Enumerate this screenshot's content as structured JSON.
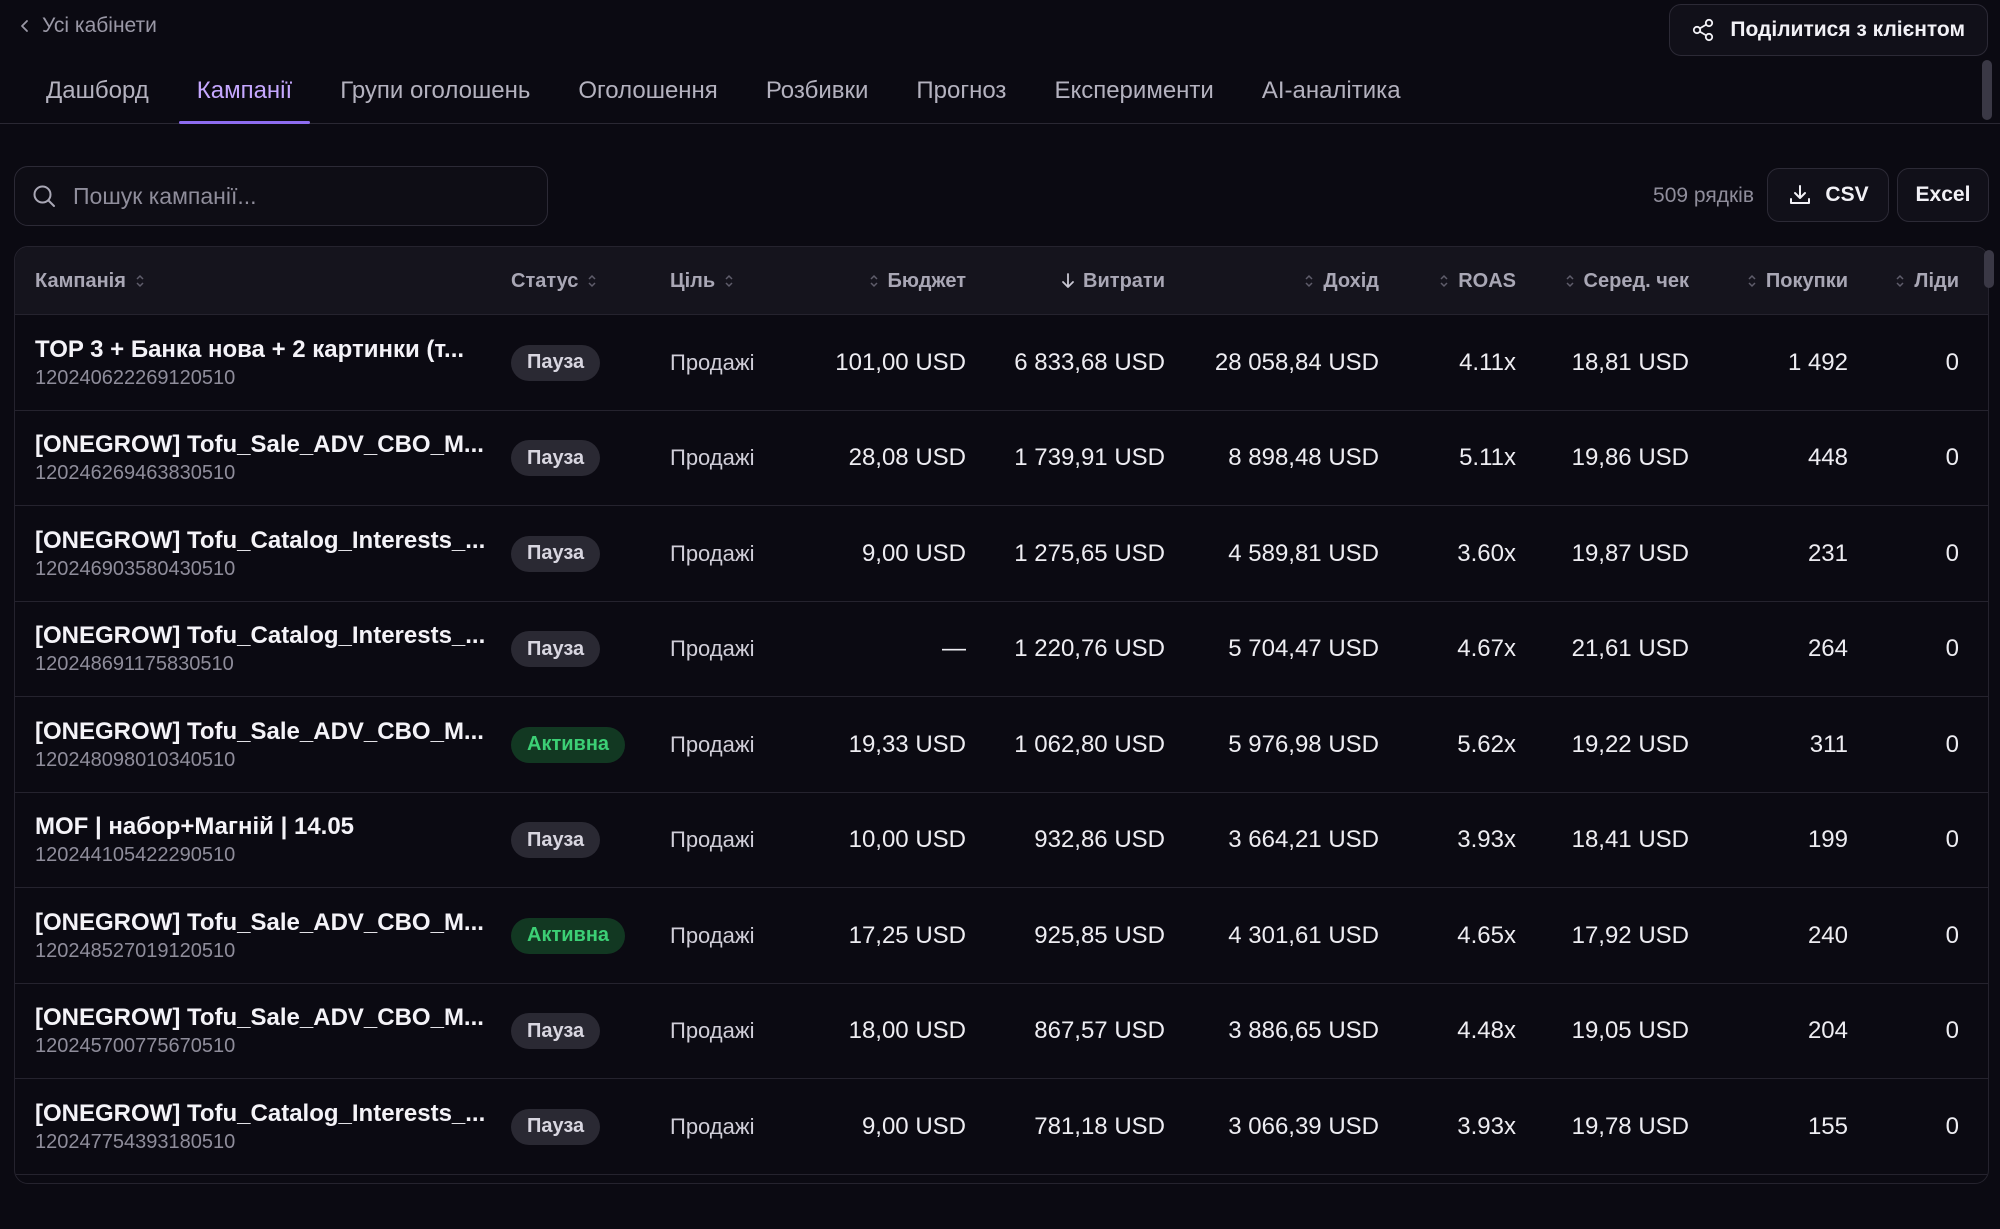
{
  "header": {
    "back_label": "Усі кабінети",
    "share_label": "Поділитися з клієнтом"
  },
  "tabs": [
    {
      "label": "Дашборд",
      "active": false
    },
    {
      "label": "Кампанії",
      "active": true
    },
    {
      "label": "Групи оголошень",
      "active": false
    },
    {
      "label": "Оголошення",
      "active": false
    },
    {
      "label": "Розбивки",
      "active": false
    },
    {
      "label": "Прогноз",
      "active": false
    },
    {
      "label": "Експерименти",
      "active": false
    },
    {
      "label": "AI-аналітика",
      "active": false
    }
  ],
  "toolbar": {
    "search_placeholder": "Пошук кампанії...",
    "row_count": "509 рядків",
    "csv_label": "CSV",
    "excel_label": "Excel"
  },
  "table": {
    "columns": [
      {
        "key": "campaign",
        "label": "Кампанія"
      },
      {
        "key": "status",
        "label": "Статус"
      },
      {
        "key": "goal",
        "label": "Ціль"
      },
      {
        "key": "budget",
        "label": "Бюджет"
      },
      {
        "key": "spend",
        "label": "Витрати",
        "sorted": "desc"
      },
      {
        "key": "revenue",
        "label": "Дохід"
      },
      {
        "key": "roas",
        "label": "ROAS"
      },
      {
        "key": "avg_check",
        "label": "Серед. чек"
      },
      {
        "key": "purchases",
        "label": "Покупки"
      },
      {
        "key": "leads",
        "label": "Ліди"
      }
    ],
    "rows": [
      {
        "name": "TOP 3 + Банка нова + 2 картинки (т...",
        "id": "120240622269120510",
        "status": "Пауза",
        "goal": "Продажі",
        "budget": "101,00 USD",
        "spend": "6 833,68 USD",
        "revenue": "28 058,84 USD",
        "roas": "4.11x",
        "avg_check": "18,81 USD",
        "purchases": "1 492",
        "leads": "0"
      },
      {
        "name": "[ONEGROW] Tofu_Sale_ADV_CBO_M...",
        "id": "120246269463830510",
        "status": "Пауза",
        "goal": "Продажі",
        "budget": "28,08 USD",
        "spend": "1 739,91 USD",
        "revenue": "8 898,48 USD",
        "roas": "5.11x",
        "avg_check": "19,86 USD",
        "purchases": "448",
        "leads": "0"
      },
      {
        "name": "[ONEGROW] Tofu_Catalog_Interests_...",
        "id": "120246903580430510",
        "status": "Пауза",
        "goal": "Продажі",
        "budget": "9,00 USD",
        "spend": "1 275,65 USD",
        "revenue": "4 589,81 USD",
        "roas": "3.60x",
        "avg_check": "19,87 USD",
        "purchases": "231",
        "leads": "0"
      },
      {
        "name": "[ONEGROW] Tofu_Catalog_Interests_...",
        "id": "120248691175830510",
        "status": "Пауза",
        "goal": "Продажі",
        "budget": "—",
        "spend": "1 220,76 USD",
        "revenue": "5 704,47 USD",
        "roas": "4.67x",
        "avg_check": "21,61 USD",
        "purchases": "264",
        "leads": "0"
      },
      {
        "name": "[ONEGROW] Tofu_Sale_ADV_CBO_M...",
        "id": "120248098010340510",
        "status": "Активна",
        "goal": "Продажі",
        "budget": "19,33 USD",
        "spend": "1 062,80 USD",
        "revenue": "5 976,98 USD",
        "roas": "5.62x",
        "avg_check": "19,22 USD",
        "purchases": "311",
        "leads": "0"
      },
      {
        "name": "MOF | набор+Магній | 14.05",
        "id": "120244105422290510",
        "status": "Пауза",
        "goal": "Продажі",
        "budget": "10,00 USD",
        "spend": "932,86 USD",
        "revenue": "3 664,21 USD",
        "roas": "3.93x",
        "avg_check": "18,41 USD",
        "purchases": "199",
        "leads": "0"
      },
      {
        "name": "[ONEGROW] Tofu_Sale_ADV_CBO_M...",
        "id": "120248527019120510",
        "status": "Активна",
        "goal": "Продажі",
        "budget": "17,25 USD",
        "spend": "925,85 USD",
        "revenue": "4 301,61 USD",
        "roas": "4.65x",
        "avg_check": "17,92 USD",
        "purchases": "240",
        "leads": "0"
      },
      {
        "name": "[ONEGROW] Tofu_Sale_ADV_CBO_M...",
        "id": "120245700775670510",
        "status": "Пауза",
        "goal": "Продажі",
        "budget": "18,00 USD",
        "spend": "867,57 USD",
        "revenue": "3 886,65 USD",
        "roas": "4.48x",
        "avg_check": "19,05 USD",
        "purchases": "204",
        "leads": "0"
      },
      {
        "name": "[ONEGROW] Tofu_Catalog_Interests_...",
        "id": "120247754393180510",
        "status": "Пауза",
        "goal": "Продажі",
        "budget": "9,00 USD",
        "spend": "781,18 USD",
        "revenue": "3 066,39 USD",
        "roas": "3.93x",
        "avg_check": "19,78 USD",
        "purchases": "155",
        "leads": "0"
      }
    ]
  },
  "colors": {
    "background": "#0b0a12",
    "accent": "#8d6cf0",
    "active_status": "#3ccf75",
    "pause_status_bg": "#2a2933"
  }
}
